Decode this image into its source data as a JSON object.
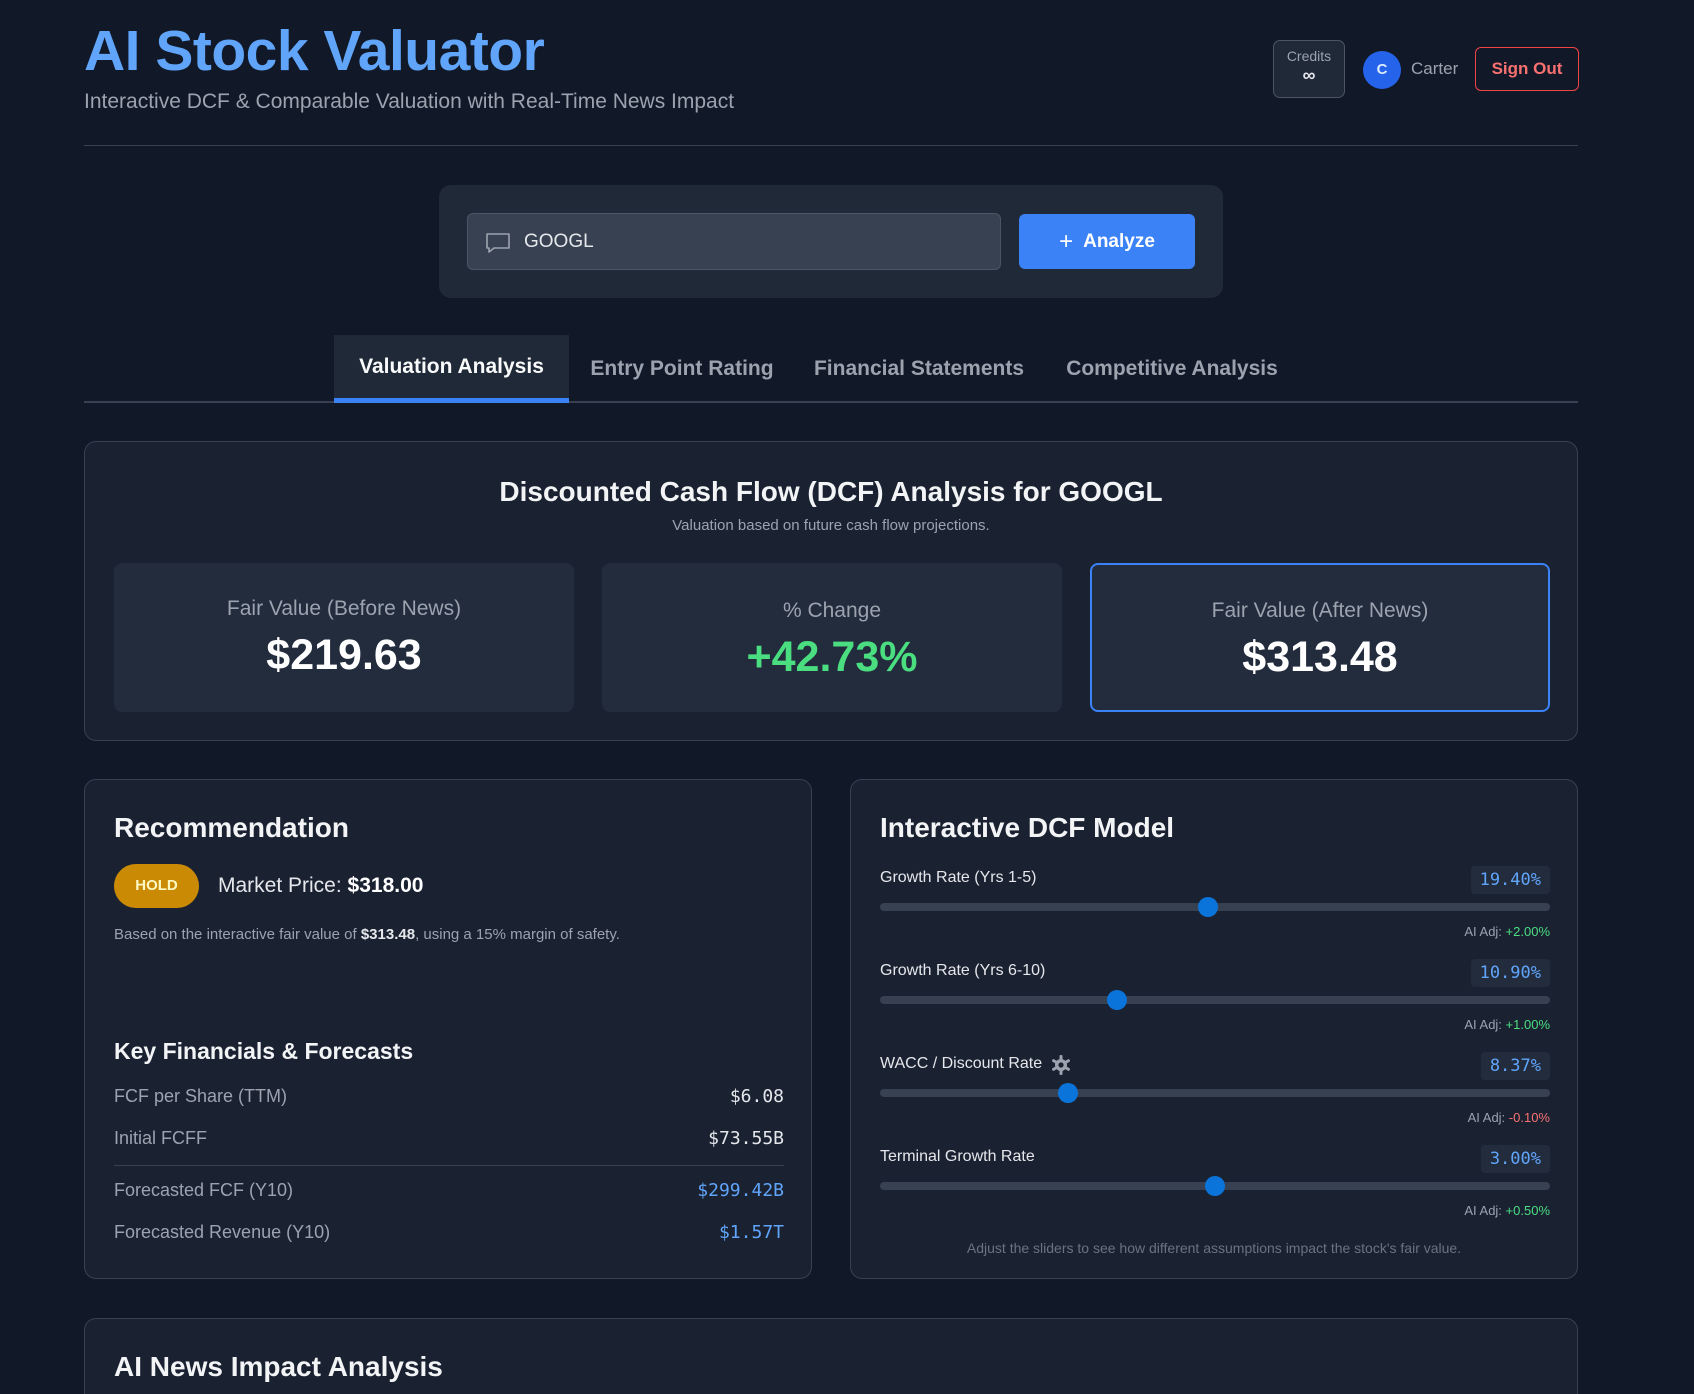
{
  "app": {
    "title": "AI Stock Valuator",
    "subtitle": "Interactive DCF & Comparable Valuation with Real-Time News Impact"
  },
  "user": {
    "credits_label": "Credits",
    "credits_value": "∞",
    "avatar_initial": "C",
    "name": "Carter",
    "sign_out": "Sign Out"
  },
  "search": {
    "value": "GOOGL",
    "analyze_label": "Analyze",
    "analyze_icon": "plus-icon",
    "field_icon": "chat-bubble-icon"
  },
  "tabs": [
    {
      "label": "Valuation Analysis",
      "active": true
    },
    {
      "label": "Entry Point Rating",
      "active": false
    },
    {
      "label": "Financial Statements",
      "active": false
    },
    {
      "label": "Competitive Analysis",
      "active": false
    }
  ],
  "dcf": {
    "title": "Discounted Cash Flow (DCF) Analysis for GOOGL",
    "subtitle": "Valuation based on future cash flow projections.",
    "fair_before_label": "Fair Value (Before News)",
    "fair_before_value": "$219.63",
    "change_label": "% Change",
    "change_value": "+42.73%",
    "fair_after_label": "Fair Value (After News)",
    "fair_after_value": "$313.48"
  },
  "recommendation": {
    "title": "Recommendation",
    "badge": "HOLD",
    "market_price_label": "Market Price:",
    "market_price_value": "$318.00",
    "basis_prefix": "Based on the interactive fair value of",
    "basis_value": "$313.48",
    "basis_suffix": ", using a 15% margin of safety.",
    "key_title": "Key Financials & Forecasts",
    "key_rows": [
      {
        "label": "FCF per Share (TTM)",
        "value": "$6.08"
      },
      {
        "label": "Initial FCFF",
        "value": "$73.55B"
      },
      {
        "label": "Forecasted FCF (Y10)",
        "value": "$299.42B"
      },
      {
        "label": "Forecasted Revenue (Y10)",
        "value": "$1.57T"
      }
    ]
  },
  "model": {
    "title": "Interactive DCF Model",
    "sliders": [
      {
        "label": "Growth Rate (Yrs 1-5)",
        "value": "19.40%",
        "adj_label": "AI Adj:",
        "adj_value": "+2.00%",
        "level": 0.49
      },
      {
        "label": "Growth Rate (Yrs 6-10)",
        "value": "10.90%",
        "adj_label": "AI Adj:",
        "adj_value": "+1.00%",
        "level": 0.353
      },
      {
        "label": "WACC / Discount Rate",
        "value": "8.37%",
        "adj_label": "AI Adj:",
        "adj_value": "-0.10%",
        "level": 0.28
      },
      {
        "label": "Terminal Growth Rate",
        "value": "3.00%",
        "adj_label": "AI Adj:",
        "adj_value": "+0.50%",
        "level": 0.5
      }
    ],
    "note": "Adjust the sliders to see how different assumptions impact the stock's fair value."
  },
  "news": {
    "title": "AI News Impact Analysis"
  },
  "colors": {
    "accent": "#3b82f6",
    "positive": "#4ade80",
    "negative": "#f87171",
    "hold": "#ca8a04"
  }
}
